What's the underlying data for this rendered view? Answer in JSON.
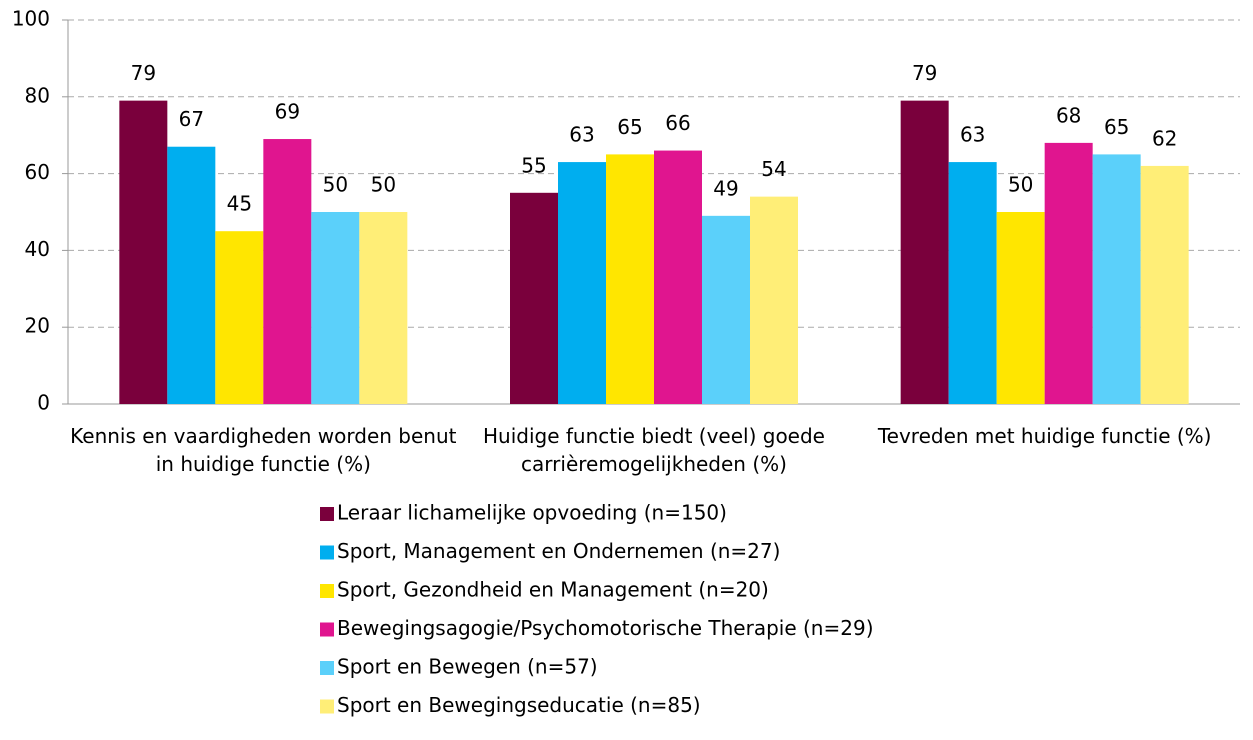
{
  "chart_data": {
    "type": "bar",
    "categories": [
      "Kennis en vaardigheden worden benut in huidige functie (%)",
      "Huidige functie biedt (veel) goede carrièremogelijkheden (%)",
      "Tevreden met huidige functie (%)"
    ],
    "series": [
      {
        "name": "Leraar lichamelijke opvoeding (n=150)",
        "color": "#7a003c",
        "values": [
          79,
          55,
          79
        ]
      },
      {
        "name": "Sport, Management en Ondernemen (n=27)",
        "color": "#00aeef",
        "values": [
          67,
          63,
          63
        ]
      },
      {
        "name": "Sport, Gezondheid en Management (n=20)",
        "color": "#ffe600",
        "values": [
          45,
          65,
          50
        ]
      },
      {
        "name": "Bewegingsagogie/Psychomotorische Therapie (n=29)",
        "color": "#e0158f",
        "values": [
          69,
          66,
          68
        ]
      },
      {
        "name": "Sport en Bewegen (n=57)",
        "color": "#5bd0fa",
        "values": [
          50,
          49,
          65
        ]
      },
      {
        "name": "Sport en Bewegingseducatie (n=85)",
        "color": "#ffee77",
        "values": [
          50,
          54,
          62
        ]
      }
    ],
    "ylim": [
      0,
      100
    ],
    "yticks": [
      0,
      20,
      40,
      60,
      80,
      100
    ],
    "grid": true
  }
}
